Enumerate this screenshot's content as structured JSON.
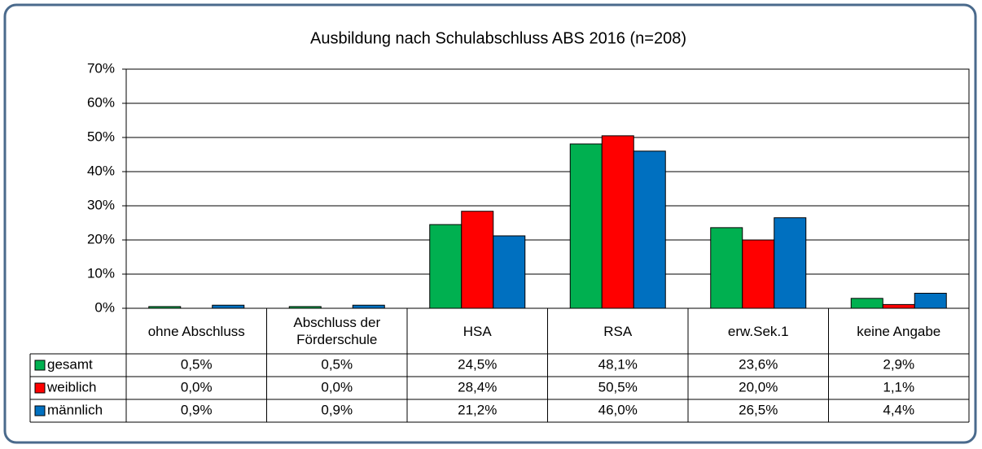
{
  "chart_data": {
    "type": "bar",
    "title": "Ausbildung  nach Schulabschluss ABS 2016 (n=208)",
    "categories": [
      "ohne Abschluss",
      "Abschluss der Förderschule",
      "HSA",
      "RSA",
      "erw.Sek.1",
      "keine Angabe"
    ],
    "series": [
      {
        "name": "gesamt",
        "color": "#00b050",
        "values": [
          0.5,
          0.5,
          24.5,
          48.1,
          23.6,
          2.9
        ],
        "value_labels": [
          "0,5%",
          "0,5%",
          "24,5%",
          "48,1%",
          "23,6%",
          "2,9%"
        ]
      },
      {
        "name": "weiblich",
        "color": "#ff0000",
        "values": [
          0.0,
          0.0,
          28.4,
          50.5,
          20.0,
          1.1
        ],
        "value_labels": [
          "0,0%",
          "0,0%",
          "28,4%",
          "50,5%",
          "20,0%",
          "1,1%"
        ]
      },
      {
        "name": "männlich",
        "color": "#0070c0",
        "values": [
          0.9,
          0.9,
          21.2,
          46.0,
          26.5,
          4.4
        ],
        "value_labels": [
          "0,9%",
          "0,9%",
          "21,2%",
          "46,0%",
          "26,5%",
          "4,4%"
        ]
      }
    ],
    "ylim": [
      0,
      70
    ],
    "yticks": [
      {
        "value": 0,
        "label": "0%"
      },
      {
        "value": 10,
        "label": "10%"
      },
      {
        "value": 20,
        "label": "20%"
      },
      {
        "value": 30,
        "label": "30%"
      },
      {
        "value": 40,
        "label": "40%"
      },
      {
        "value": 50,
        "label": "50%"
      },
      {
        "value": 60,
        "label": "60%"
      },
      {
        "value": 70,
        "label": "70%"
      }
    ],
    "grid": true
  }
}
